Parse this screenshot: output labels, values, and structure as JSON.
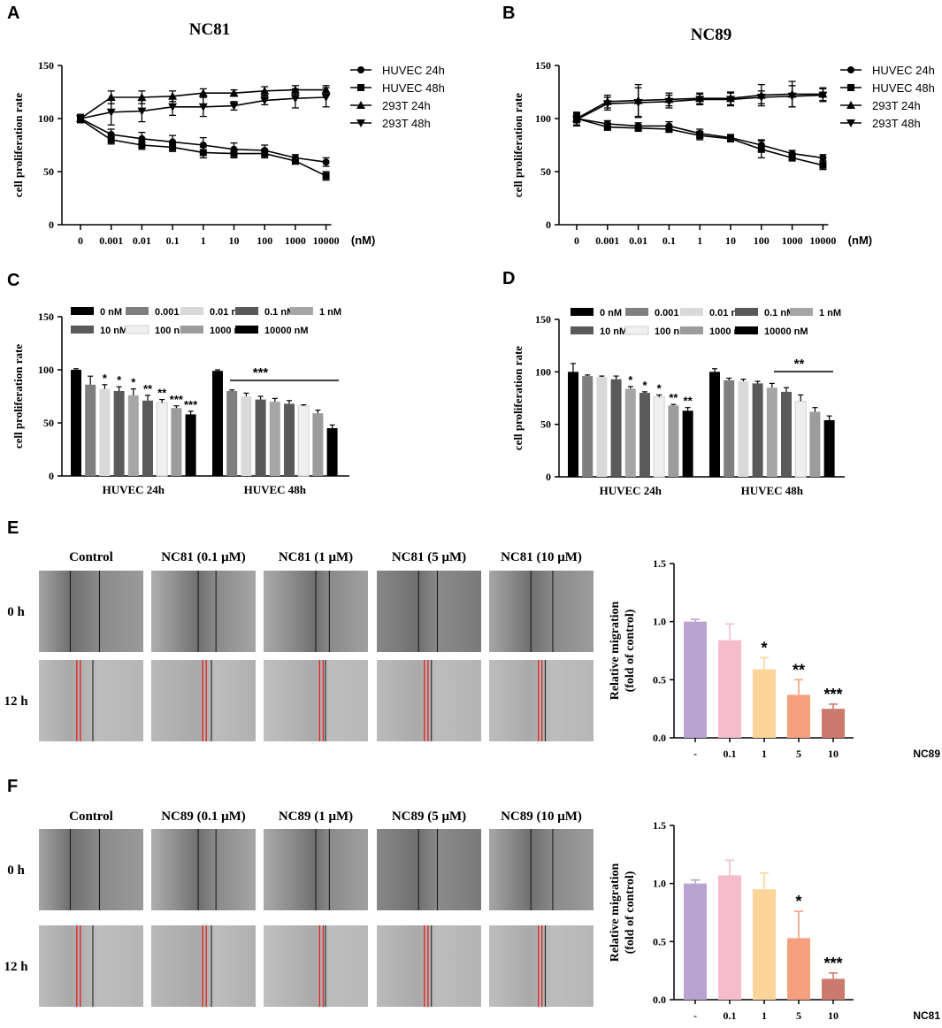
{
  "figure": {
    "panels": {
      "A": {
        "letter": "A",
        "title": "NC81"
      },
      "B": {
        "letter": "B",
        "title": "NC89"
      },
      "C": {
        "letter": "C"
      },
      "D": {
        "letter": "D"
      },
      "E": {
        "letter": "E",
        "compound": "NC81",
        "stats_compound": "NC89",
        "unit": "(μM)",
        "row_labels": [
          "0 h",
          "12 h"
        ],
        "col_labels": [
          "Control",
          "NC81 (0.1 μM)",
          "NC81 (1 μM)",
          "NC81 (5 μM)",
          "NC81 (10 μM)"
        ]
      },
      "F": {
        "letter": "F",
        "compound": "NC89",
        "stats_compound": "NC81",
        "unit": "(μM)",
        "row_labels": [
          "0 h",
          "12 h"
        ],
        "col_labels": [
          "Control",
          "NC89 (0.1 μM)",
          "NC89 (1 μM)",
          "NC89 (5 μM)",
          "NC89 (10 μM)"
        ]
      }
    },
    "scratch_photo_style": {
      "tone_0h": [
        "#9a9a9a",
        "#a5a5a5",
        "#a0a0a0",
        "#7a7a7a",
        "#9c9c9c"
      ],
      "tone_12h": [
        "#b5b5b5",
        "#b0b0b0",
        "#b8b8b8",
        "#b3b3b3",
        "#b6b6b6"
      ],
      "line_color_0h": "#111111",
      "line_color_12h": "#e02020"
    },
    "colors": {
      "bar_palette": [
        "#000000",
        "#7f7f7f",
        "#d9d9d9",
        "#595959",
        "#a6a6a6",
        "#5a5a5a",
        "#efefef",
        "#9c9c9c",
        "#000000"
      ],
      "migration_palette": [
        "#b9a3d0",
        "#f6bccb",
        "#fdd59a",
        "#f7a07f",
        "#cc7a6e"
      ]
    }
  },
  "chart_data": [
    {
      "id": "A",
      "type": "line",
      "title": "NC81",
      "xlabel": "",
      "x_unit": "(nM)",
      "ylabel": "cell proliferation rate",
      "categories": [
        "0",
        "0.001",
        "0.01",
        "0.1",
        "1",
        "10",
        "100",
        "1000",
        "10000"
      ],
      "ylim": [
        0,
        150
      ],
      "yticks": [
        0,
        50,
        100,
        150
      ],
      "series": [
        {
          "name": "HUVEC 24h",
          "marker": "circle",
          "values": [
            100,
            85,
            81,
            78,
            75,
            71,
            70,
            63,
            59
          ],
          "errors": [
            2,
            5,
            6,
            6,
            7,
            6,
            5,
            3,
            4
          ]
        },
        {
          "name": "HUVEC 48h",
          "marker": "square",
          "values": [
            99,
            80,
            75,
            73,
            68,
            67,
            67,
            60,
            46
          ],
          "errors": [
            2,
            4,
            4,
            4,
            5,
            4,
            4,
            3,
            4
          ]
        },
        {
          "name": "293T 24h",
          "marker": "triangle-up",
          "values": [
            100,
            120,
            120,
            121,
            124,
            124,
            126,
            127,
            127
          ],
          "errors": [
            3,
            6,
            6,
            5,
            4,
            3,
            4,
            4,
            4
          ]
        },
        {
          "name": "293T 48h",
          "marker": "triangle-down",
          "values": [
            100,
            106,
            107,
            111,
            111,
            112,
            117,
            119,
            120
          ],
          "errors": [
            4,
            12,
            10,
            8,
            9,
            4,
            4,
            9,
            9
          ]
        }
      ]
    },
    {
      "id": "B",
      "type": "line",
      "title": "NC89",
      "xlabel": "",
      "x_unit": "(nM)",
      "ylabel": "cell proliferation rate",
      "categories": [
        "0",
        "0.001",
        "0.01",
        "0.1",
        "1",
        "10",
        "100",
        "1000",
        "10000"
      ],
      "ylim": [
        0,
        150
      ],
      "yticks": [
        0,
        50,
        100,
        150
      ],
      "series": [
        {
          "name": "HUVEC 24h",
          "marker": "circle",
          "values": [
            100,
            95,
            93,
            93,
            86,
            82,
            75,
            67,
            63
          ],
          "errors": [
            4,
            3,
            3,
            4,
            4,
            3,
            5,
            3,
            3
          ]
        },
        {
          "name": "HUVEC 48h",
          "marker": "square",
          "values": [
            100,
            92,
            91,
            90,
            84,
            81,
            71,
            63,
            56
          ],
          "errors": [
            4,
            3,
            3,
            3,
            4,
            3,
            8,
            3,
            4
          ]
        },
        {
          "name": "293T 24h",
          "marker": "triangle-up",
          "values": [
            100,
            116,
            117,
            118,
            119,
            119,
            122,
            123,
            123
          ],
          "errors": [
            6,
            6,
            15,
            6,
            5,
            6,
            10,
            12,
            6
          ]
        },
        {
          "name": "293T 48h",
          "marker": "triangle-down",
          "values": [
            99,
            114,
            115,
            116,
            118,
            118,
            120,
            121,
            122
          ],
          "errors": [
            6,
            6,
            14,
            6,
            5,
            6,
            6,
            10,
            6
          ]
        }
      ]
    },
    {
      "id": "C",
      "type": "bar",
      "title": "",
      "xlabel": "",
      "ylabel": "cell proliferation rate",
      "categories": [
        "HUVEC 24h",
        "HUVEC 48h"
      ],
      "ylim": [
        0,
        150
      ],
      "yticks": [
        0,
        50,
        100,
        150
      ],
      "series": [
        {
          "name": "0 nM",
          "values": [
            100,
            99
          ],
          "errors": [
            1,
            1
          ],
          "sig": [
            "",
            ""
          ]
        },
        {
          "name": "0.001 nM",
          "values": [
            86,
            80
          ],
          "errors": [
            8,
            1
          ],
          "sig": [
            "",
            ""
          ]
        },
        {
          "name": "0.01 nM",
          "values": [
            82,
            75
          ],
          "errors": [
            4,
            3
          ],
          "sig": [
            "*",
            ""
          ]
        },
        {
          "name": "0.1 nM",
          "values": [
            80,
            72
          ],
          "errors": [
            4,
            3
          ],
          "sig": [
            "*",
            ""
          ]
        },
        {
          "name": "1 nM",
          "values": [
            76,
            70
          ],
          "errors": [
            6,
            3
          ],
          "sig": [
            "*",
            ""
          ]
        },
        {
          "name": "10 nM",
          "values": [
            71,
            68
          ],
          "errors": [
            5,
            3
          ],
          "sig": [
            "**",
            ""
          ]
        },
        {
          "name": "100 nM",
          "values": [
            69,
            66
          ],
          "errors": [
            3,
            1
          ],
          "sig": [
            "**",
            ""
          ]
        },
        {
          "name": "1000 nM",
          "values": [
            64,
            59
          ],
          "errors": [
            2,
            3
          ],
          "sig": [
            "***",
            ""
          ]
        },
        {
          "name": "10000 nM",
          "values": [
            58,
            45
          ],
          "errors": [
            3,
            3
          ],
          "sig": [
            "***",
            ""
          ]
        }
      ],
      "group_sig": {
        "group": 1,
        "label": "***"
      }
    },
    {
      "id": "D",
      "type": "bar",
      "title": "",
      "xlabel": "",
      "ylabel": "cell proliferation rate",
      "categories": [
        "HUVEC 24h",
        "HUVEC 48h"
      ],
      "ylim": [
        0,
        150
      ],
      "yticks": [
        0,
        50,
        100,
        150
      ],
      "series": [
        {
          "name": "0 nM",
          "values": [
            100,
            100
          ],
          "errors": [
            8,
            3
          ],
          "sig": [
            "",
            ""
          ]
        },
        {
          "name": "0.001 nM",
          "values": [
            96,
            92
          ],
          "errors": [
            1,
            2
          ],
          "sig": [
            "",
            ""
          ]
        },
        {
          "name": "0.01 nM",
          "values": [
            95,
            91
          ],
          "errors": [
            1,
            2
          ],
          "sig": [
            "",
            ""
          ]
        },
        {
          "name": "0.1 nM",
          "values": [
            93,
            89
          ],
          "errors": [
            3,
            2
          ],
          "sig": [
            "",
            ""
          ]
        },
        {
          "name": "1 nM",
          "values": [
            84,
            85
          ],
          "errors": [
            2,
            4
          ],
          "sig": [
            "*",
            ""
          ]
        },
        {
          "name": "10 nM",
          "values": [
            80,
            81
          ],
          "errors": [
            1,
            4
          ],
          "sig": [
            "*",
            ""
          ]
        },
        {
          "name": "100 nM",
          "values": [
            76,
            72
          ],
          "errors": [
            2,
            6
          ],
          "sig": [
            "*",
            ""
          ]
        },
        {
          "name": "1000 nM",
          "values": [
            68,
            62
          ],
          "errors": [
            1,
            4
          ],
          "sig": [
            "**",
            ""
          ]
        },
        {
          "name": "10000 nM",
          "values": [
            63,
            54
          ],
          "errors": [
            3,
            4
          ],
          "sig": [
            "**",
            ""
          ]
        }
      ],
      "group_sig": {
        "group": 1,
        "label": "**"
      }
    },
    {
      "id": "E",
      "type": "bar",
      "title": "",
      "xlabel": "NC89 (μM)",
      "ylabel": "Relative migration (fold of control)",
      "ylabel_lines": [
        "Relative migration",
        "(fold of control)"
      ],
      "categories": [
        "-",
        "0.1",
        "1",
        "5",
        "10"
      ],
      "ylim": [
        0,
        1.5
      ],
      "yticks": [
        "0.0",
        "0.5",
        "1.0",
        "1.5"
      ],
      "values": [
        1.0,
        0.84,
        0.59,
        0.37,
        0.25
      ],
      "errors": [
        0.02,
        0.14,
        0.1,
        0.13,
        0.04
      ],
      "sig": [
        "",
        "",
        "*",
        "**",
        "***"
      ]
    },
    {
      "id": "F",
      "type": "bar",
      "title": "",
      "xlabel": "NC81 (μM)",
      "ylabel": "Relative migration (fold of control)",
      "ylabel_lines": [
        "Relative migration",
        "(fold of control)"
      ],
      "categories": [
        "-",
        "0.1",
        "1",
        "5",
        "10"
      ],
      "ylim": [
        0,
        1.5
      ],
      "yticks": [
        "0.0",
        "0.5",
        "1.0",
        "1.5"
      ],
      "values": [
        1.0,
        1.07,
        0.95,
        0.53,
        0.18
      ],
      "errors": [
        0.03,
        0.13,
        0.14,
        0.23,
        0.05
      ],
      "sig": [
        "",
        "",
        "",
        "*",
        "***"
      ]
    }
  ]
}
